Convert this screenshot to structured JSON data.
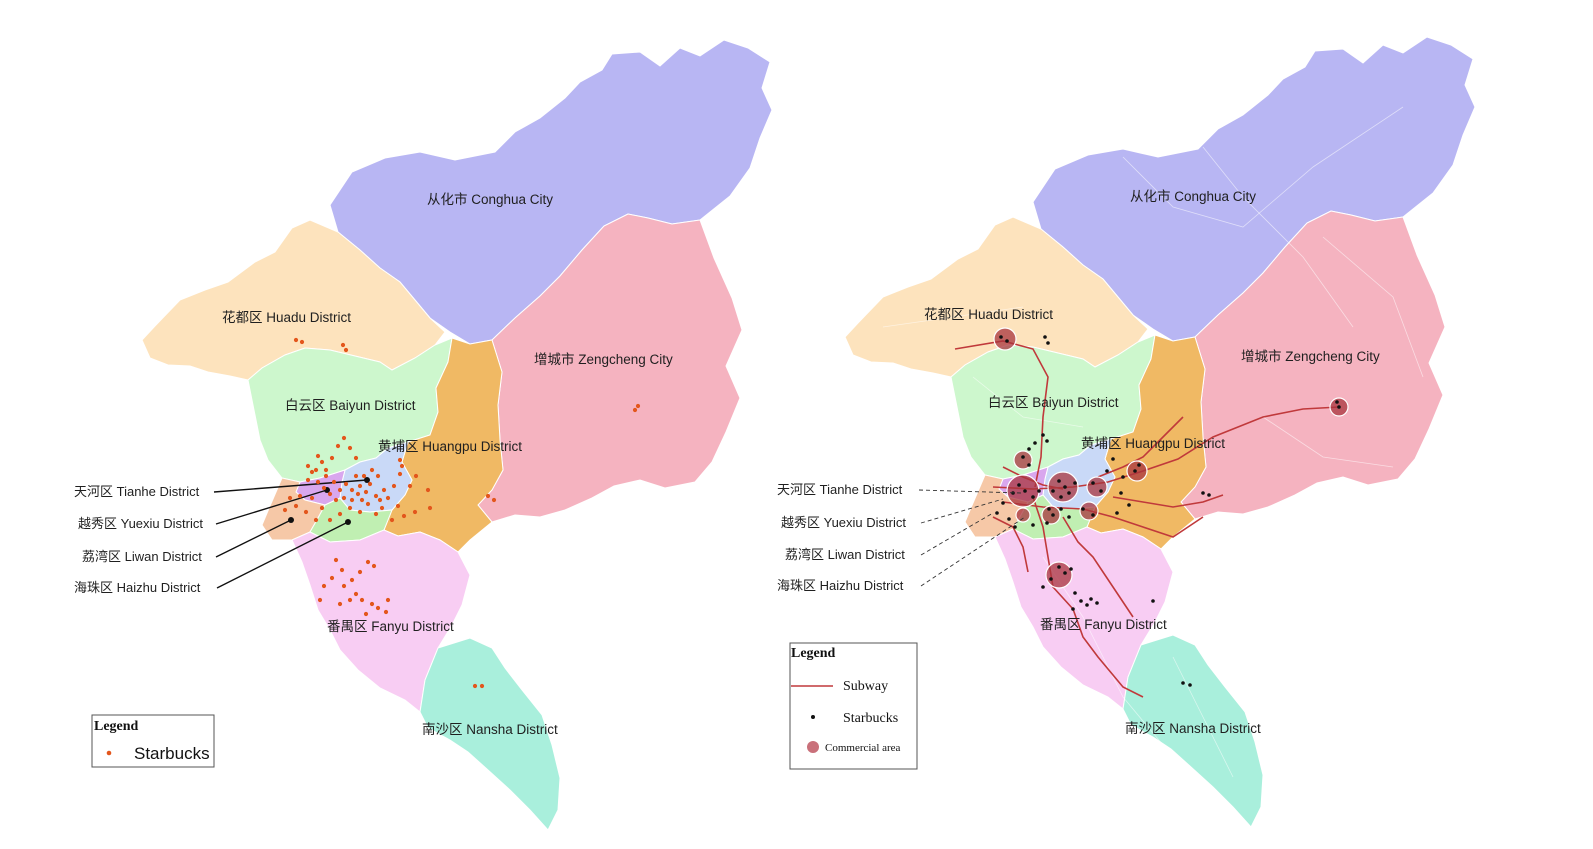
{
  "colors": {
    "conghua": "#b8b6f3",
    "zengcheng": "#f5b3c0",
    "huadu": "#fde3bd",
    "baiyun": "#cdf7cd",
    "huangpu": "#f0b964",
    "tianhe": "#c9d9f7",
    "yuexiu": "#d9a7ee",
    "liwan": "#f6c8a7",
    "haizhu": "#c0efb2",
    "fanyu": "#f8cdf3",
    "nansha": "#a9efdc",
    "starbucks_left": "#e3561c",
    "starbucks_right": "#111111",
    "subway": "#c0393b",
    "commercial": "#a8343e"
  },
  "districts": {
    "conghua": "从化市 Conghua City",
    "zengcheng": "增城市 Zengcheng City",
    "huadu": "花都区 Huadu District",
    "baiyun": "白云区 Baiyun District",
    "huangpu": "黄埔区 Huangpu District",
    "fanyu": "番禺区 Fanyu District",
    "nansha": "南沙区 Nansha District"
  },
  "leaders": {
    "tianhe": "天河区 Tianhe District",
    "yuexiu": "越秀区 Yuexiu District",
    "liwan": "荔湾区 Liwan District",
    "haizhu": "海珠区 Haizhu District"
  },
  "legend_left": {
    "title": "Legend",
    "starbucks": "Starbucks"
  },
  "legend_right": {
    "title": "Legend",
    "subway": "Subway",
    "starbucks": "Starbucks",
    "commercial": "Commercial area"
  }
}
